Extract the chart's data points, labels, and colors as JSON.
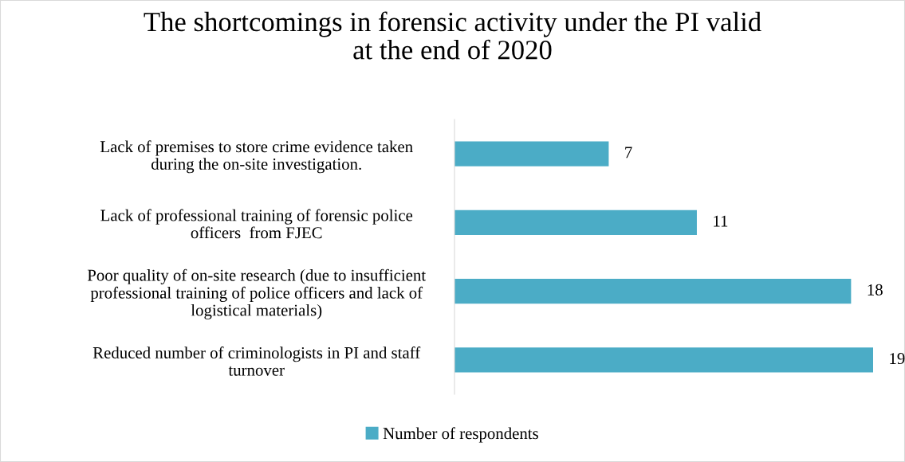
{
  "chart_data": {
    "type": "bar",
    "orientation": "horizontal",
    "title": "The shortcomings in forensic activity under the PI valid\nat the end of 2020",
    "categories": [
      "Lack of premises to store crime evidence taken\nduring the on-site investigation.",
      "Lack of professional training of forensic police\nofficers  from FJEC",
      "Poor quality of on-site research (due to insufficient\nprofessional training of police officers and lack of\nlogistical materials)",
      "Reduced number of criminologists in PI and staff\nturnover"
    ],
    "series": [
      {
        "name": "Number of respondents",
        "color": "#4bacc6",
        "values": [
          7,
          11,
          18,
          19
        ]
      }
    ],
    "data_labels": true,
    "legend": "bottom",
    "grid": false,
    "tick_labels": "y"
  }
}
